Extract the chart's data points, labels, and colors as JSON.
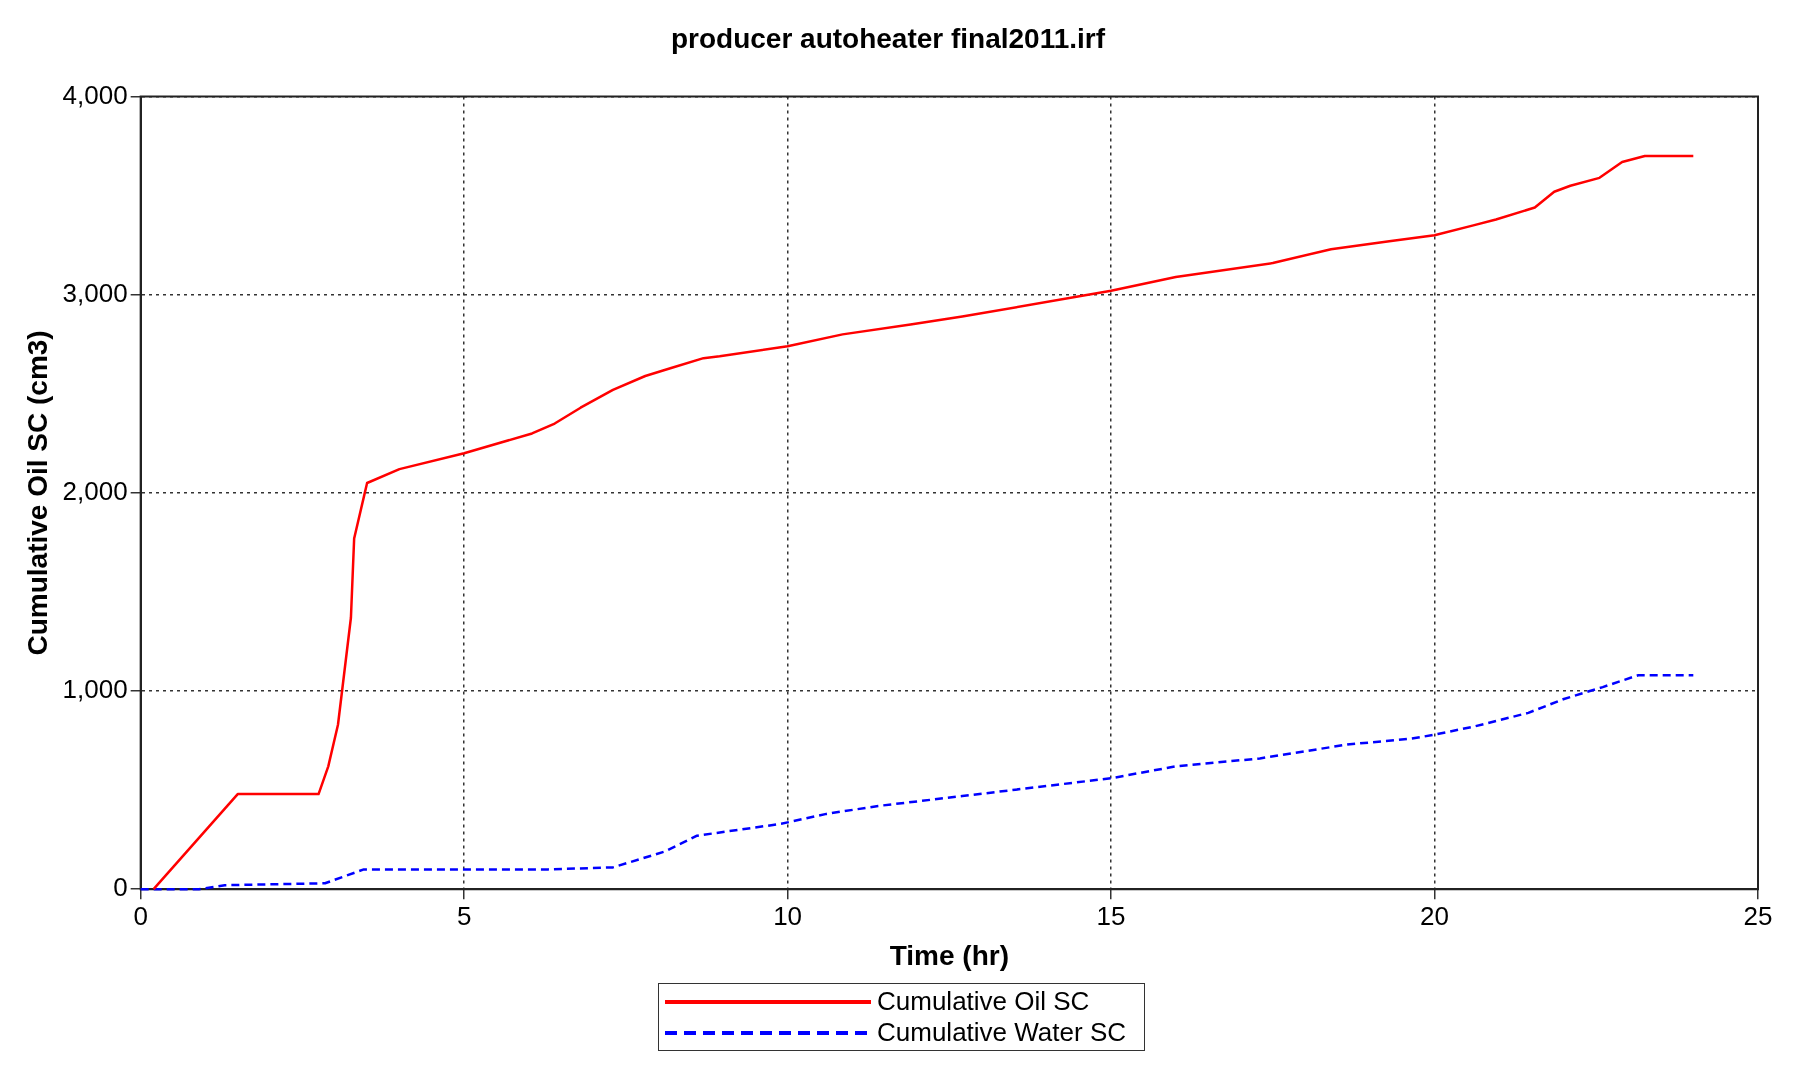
{
  "chart_data": {
    "type": "line",
    "title": "producer autoheater final2011.irf",
    "xlabel": "Time (hr)",
    "ylabel": "Cumulative Oil SC (cm3)",
    "xlim": [
      0,
      25
    ],
    "xticks": [
      0,
      5,
      10,
      15,
      20,
      25
    ],
    "ylim": [
      0,
      4000
    ],
    "yticks": [
      0,
      {
        "value": 1000,
        "label": "1,000"
      },
      {
        "value": 2000,
        "label": "2,000"
      },
      {
        "value": 3000,
        "label": "3,000"
      },
      {
        "value": 4000,
        "label": "4,000"
      }
    ],
    "grid": true,
    "legend": "bottom",
    "marker": "none",
    "series": [
      {
        "name": "Cumulative Oil SC",
        "color": "#ff0000",
        "line_style": "solid",
        "x": [
          0.2,
          1.5,
          2.75,
          2.9,
          3.05,
          3.15,
          3.25,
          3.3,
          3.45,
          3.5,
          4.0,
          5.0,
          6.05,
          6.4,
          6.8,
          7.3,
          7.8,
          8.2,
          8.7,
          8.95,
          10.0,
          10.85,
          11.9,
          12.7,
          15.0,
          16.0,
          17.5,
          18.4,
          19.3,
          20.0,
          20.6,
          20.95,
          21.55,
          21.85,
          22.1,
          22.55,
          22.9,
          23.25,
          24.0
        ],
        "values": [
          0,
          480,
          480,
          620,
          830,
          1100,
          1370,
          1770,
          1980,
          2050,
          2120,
          2200,
          2300,
          2350,
          2430,
          2520,
          2590,
          2630,
          2680,
          2690,
          2740,
          2800,
          2850,
          2890,
          3020,
          3090,
          3160,
          3230,
          3270,
          3300,
          3350,
          3380,
          3440,
          3520,
          3550,
          3590,
          3670,
          3700,
          3700
        ]
      },
      {
        "name": "Cumulative Water SC",
        "color": "#0000ff",
        "line_style": "dashed",
        "x": [
          0.0,
          0.9,
          1.3,
          2.85,
          3.45,
          6.3,
          7.3,
          8.1,
          8.6,
          9.9,
          10.6,
          11.4,
          12.7,
          15.0,
          16.0,
          17.3,
          18.65,
          19.65,
          20.0,
          20.6,
          21.45,
          22.0,
          22.6,
          23.15,
          24.0
        ],
        "values": [
          0,
          0,
          20,
          30,
          100,
          100,
          110,
          190,
          270,
          330,
          380,
          420,
          470,
          560,
          620,
          660,
          730,
          760,
          780,
          820,
          890,
          960,
          1020,
          1080,
          1080
        ]
      }
    ]
  }
}
